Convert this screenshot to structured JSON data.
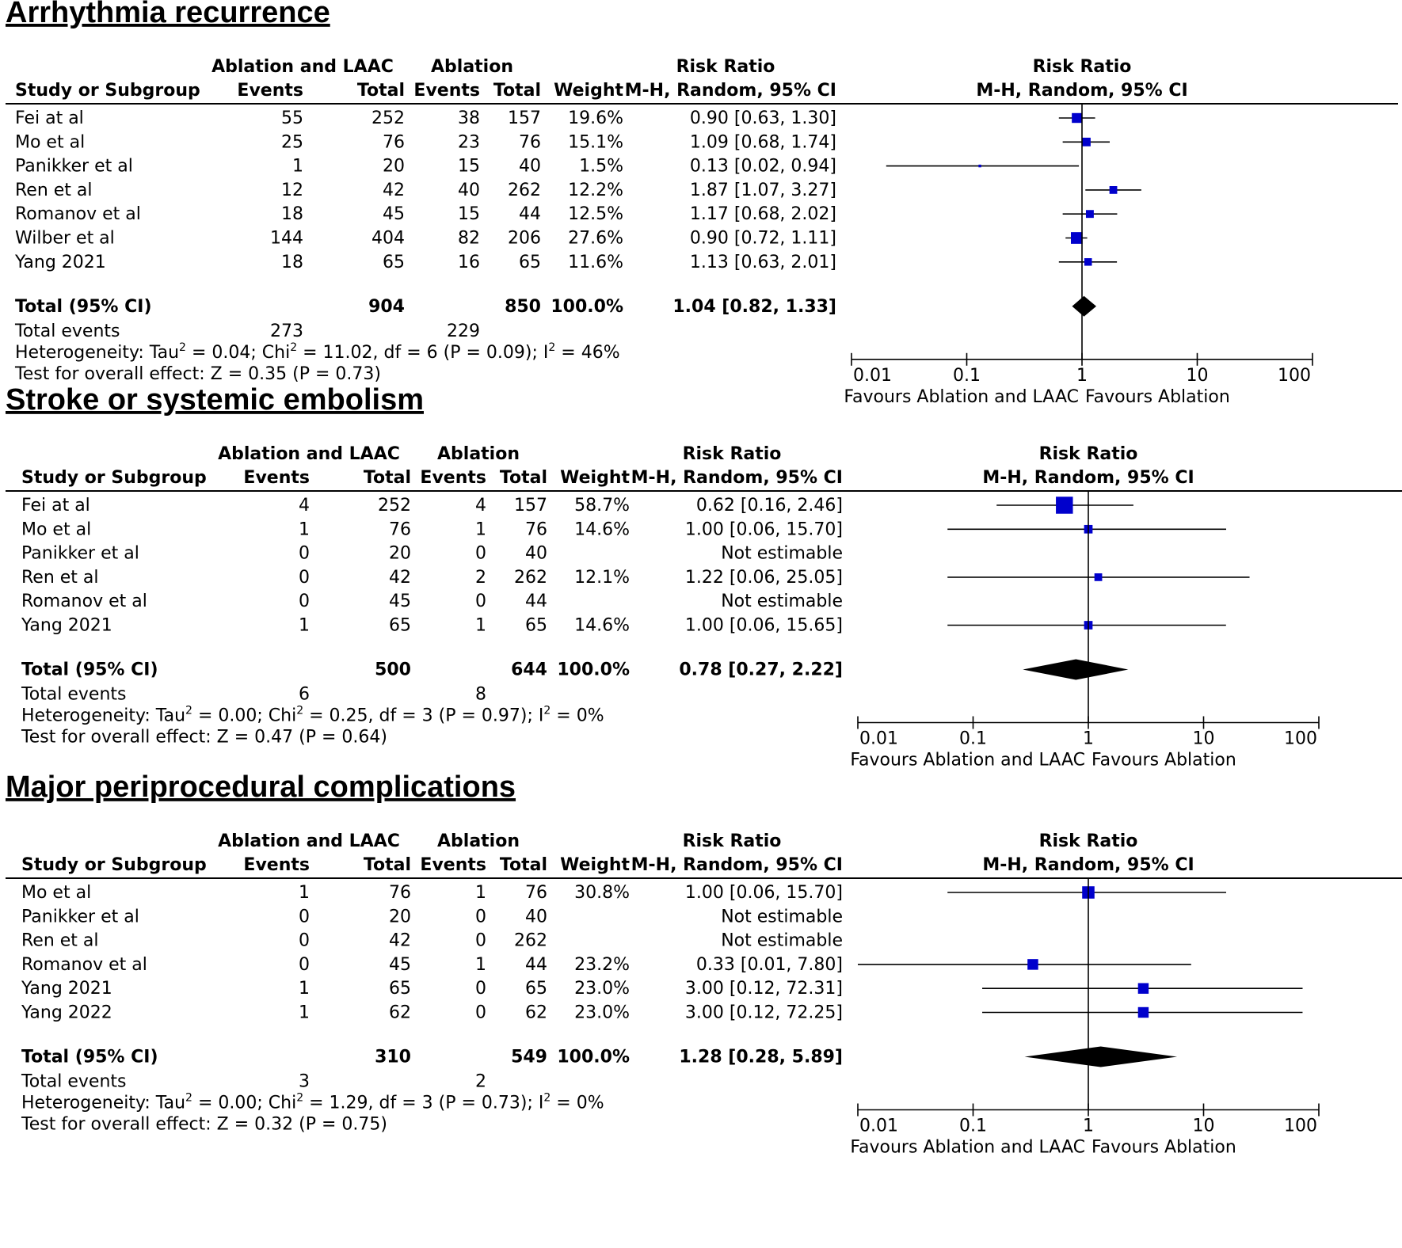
{
  "chart_data": [
    {
      "type": "forest",
      "title": "Arrhythmia recurrence",
      "headers": {
        "group1": "Ablation and LAAC",
        "group2": "Ablation",
        "study": "Study or Subgroup",
        "events": "Events",
        "total": "Total",
        "weight": "Weight",
        "rr1": "Risk Ratio",
        "rr2": "M-H, Random, 95% CI"
      },
      "studies": [
        {
          "name": "Fei at al",
          "e1": "55",
          "n1": "252",
          "e2": "38",
          "n2": "157",
          "weight": "19.6%",
          "ci": "0.90 [0.63, 1.30]",
          "rr": 0.9,
          "lo": 0.63,
          "hi": 1.3,
          "w": 19.6
        },
        {
          "name": "Mo et al",
          "e1": "25",
          "n1": "76",
          "e2": "23",
          "n2": "76",
          "weight": "15.1%",
          "ci": "1.09 [0.68, 1.74]",
          "rr": 1.09,
          "lo": 0.68,
          "hi": 1.74,
          "w": 15.1
        },
        {
          "name": "Panikker et al",
          "e1": "1",
          "n1": "20",
          "e2": "15",
          "n2": "40",
          "weight": "1.5%",
          "ci": "0.13 [0.02, 0.94]",
          "rr": 0.13,
          "lo": 0.02,
          "hi": 0.94,
          "w": 1.5
        },
        {
          "name": "Ren et al",
          "e1": "12",
          "n1": "42",
          "e2": "40",
          "n2": "262",
          "weight": "12.2%",
          "ci": "1.87 [1.07, 3.27]",
          "rr": 1.87,
          "lo": 1.07,
          "hi": 3.27,
          "w": 12.2
        },
        {
          "name": "Romanov et al",
          "e1": "18",
          "n1": "45",
          "e2": "15",
          "n2": "44",
          "weight": "12.5%",
          "ci": "1.17 [0.68, 2.02]",
          "rr": 1.17,
          "lo": 0.68,
          "hi": 2.02,
          "w": 12.5
        },
        {
          "name": "Wilber et al",
          "e1": "144",
          "n1": "404",
          "e2": "82",
          "n2": "206",
          "weight": "27.6%",
          "ci": "0.90 [0.72, 1.11]",
          "rr": 0.9,
          "lo": 0.72,
          "hi": 1.11,
          "w": 27.6
        },
        {
          "name": "Yang 2021",
          "e1": "18",
          "n1": "65",
          "e2": "16",
          "n2": "65",
          "weight": "11.6%",
          "ci": "1.13 [0.63, 2.01]",
          "rr": 1.13,
          "lo": 0.63,
          "hi": 2.01,
          "w": 11.6
        }
      ],
      "total": {
        "label": "Total (95% CI)",
        "n1": "904",
        "n2": "850",
        "weight": "100.0%",
        "ci": "1.04 [0.82, 1.33]",
        "rr": 1.04,
        "lo": 0.82,
        "hi": 1.33
      },
      "total_events": {
        "label": "Total events",
        "e1": "273",
        "e2": "229"
      },
      "heterogeneity": {
        "pre": "Heterogeneity: Tau",
        "tau2": "0.04",
        "chi2": "11.02",
        "df": "6",
        "p": "0.09",
        "i2": "46%"
      },
      "overall": "Test for overall effect: Z = 0.35 (P = 0.73)",
      "axis": {
        "scale": "log",
        "xlim": [
          0.01,
          100
        ],
        "ticks": [
          "0.01",
          "0.1",
          "1",
          "10",
          "100"
        ],
        "favours_left": "Favours Ablation and LAAC",
        "favours_right": "Favours Ablation"
      }
    },
    {
      "type": "forest",
      "title": "Stroke or systemic embolism",
      "headers": {
        "group1": "Ablation and LAAC",
        "group2": "Ablation",
        "study": "Study or Subgroup",
        "events": "Events",
        "total": "Total",
        "weight": "Weight",
        "rr1": "Risk Ratio",
        "rr2": "M-H, Random, 95% CI"
      },
      "studies": [
        {
          "name": "Fei at al",
          "e1": "4",
          "n1": "252",
          "e2": "4",
          "n2": "157",
          "weight": "58.7%",
          "ci": "0.62 [0.16, 2.46]",
          "rr": 0.62,
          "lo": 0.16,
          "hi": 2.46,
          "w": 58.7
        },
        {
          "name": "Mo et al",
          "e1": "1",
          "n1": "76",
          "e2": "1",
          "n2": "76",
          "weight": "14.6%",
          "ci": "1.00 [0.06, 15.70]",
          "rr": 1.0,
          "lo": 0.06,
          "hi": 15.7,
          "w": 14.6
        },
        {
          "name": "Panikker et al",
          "e1": "0",
          "n1": "20",
          "e2": "0",
          "n2": "40",
          "weight": "",
          "ci": "Not estimable"
        },
        {
          "name": "Ren et al",
          "e1": "0",
          "n1": "42",
          "e2": "2",
          "n2": "262",
          "weight": "12.1%",
          "ci": "1.22 [0.06, 25.05]",
          "rr": 1.22,
          "lo": 0.06,
          "hi": 25.05,
          "w": 12.1
        },
        {
          "name": "Romanov et al",
          "e1": "0",
          "n1": "45",
          "e2": "0",
          "n2": "44",
          "weight": "",
          "ci": "Not estimable"
        },
        {
          "name": "Yang 2021",
          "e1": "1",
          "n1": "65",
          "e2": "1",
          "n2": "65",
          "weight": "14.6%",
          "ci": "1.00 [0.06, 15.65]",
          "rr": 1.0,
          "lo": 0.06,
          "hi": 15.65,
          "w": 14.6
        }
      ],
      "total": {
        "label": "Total (95% CI)",
        "n1": "500",
        "n2": "644",
        "weight": "100.0%",
        "ci": "0.78 [0.27, 2.22]",
        "rr": 0.78,
        "lo": 0.27,
        "hi": 2.22
      },
      "total_events": {
        "label": "Total events",
        "e1": "6",
        "e2": "8"
      },
      "heterogeneity": {
        "pre": "Heterogeneity: Tau",
        "tau2": "0.00",
        "chi2": "0.25",
        "df": "3",
        "p": "0.97",
        "i2": "0%"
      },
      "overall": "Test for overall effect: Z = 0.47 (P = 0.64)",
      "axis": {
        "scale": "log",
        "xlim": [
          0.01,
          100
        ],
        "ticks": [
          "0.01",
          "0.1",
          "1",
          "10",
          "100"
        ],
        "favours_left": "Favours Ablation and LAAC",
        "favours_right": "Favours Ablation"
      }
    },
    {
      "type": "forest",
      "title": "Major periprocedural complications",
      "headers": {
        "group1": "Ablation and LAAC",
        "group2": "Ablation",
        "study": "Study or Subgroup",
        "events": "Events",
        "total": "Total",
        "weight": "Weight",
        "rr1": "Risk Ratio",
        "rr2": "M-H, Random, 95% CI"
      },
      "studies": [
        {
          "name": "Mo et al",
          "e1": "1",
          "n1": "76",
          "e2": "1",
          "n2": "76",
          "weight": "30.8%",
          "ci": "1.00 [0.06, 15.70]",
          "rr": 1.0,
          "lo": 0.06,
          "hi": 15.7,
          "w": 30.8
        },
        {
          "name": "Panikker et al",
          "e1": "0",
          "n1": "20",
          "e2": "0",
          "n2": "40",
          "weight": "",
          "ci": "Not estimable"
        },
        {
          "name": "Ren et al",
          "e1": "0",
          "n1": "42",
          "e2": "0",
          "n2": "262",
          "weight": "",
          "ci": "Not estimable"
        },
        {
          "name": "Romanov et al",
          "e1": "0",
          "n1": "45",
          "e2": "1",
          "n2": "44",
          "weight": "23.2%",
          "ci": "0.33 [0.01, 7.80]",
          "rr": 0.33,
          "lo": 0.01,
          "hi": 7.8,
          "w": 23.2
        },
        {
          "name": "Yang 2021",
          "e1": "1",
          "n1": "65",
          "e2": "0",
          "n2": "65",
          "weight": "23.0%",
          "ci": "3.00 [0.12, 72.31]",
          "rr": 3.0,
          "lo": 0.12,
          "hi": 72.31,
          "w": 23.0
        },
        {
          "name": "Yang 2022",
          "e1": "1",
          "n1": "62",
          "e2": "0",
          "n2": "62",
          "weight": "23.0%",
          "ci": "3.00 [0.12, 72.25]",
          "rr": 3.0,
          "lo": 0.12,
          "hi": 72.25,
          "w": 23.0
        }
      ],
      "total": {
        "label": "Total (95% CI)",
        "n1": "310",
        "n2": "549",
        "weight": "100.0%",
        "ci": "1.28 [0.28, 5.89]",
        "rr": 1.28,
        "lo": 0.28,
        "hi": 5.89
      },
      "total_events": {
        "label": "Total events",
        "e1": "3",
        "e2": "2"
      },
      "heterogeneity": {
        "pre": "Heterogeneity: Tau",
        "tau2": "0.00",
        "chi2": "1.29",
        "df": "3",
        "p": "0.73",
        "i2": "0%"
      },
      "overall": "Test for overall effect: Z = 0.32 (P = 0.75)",
      "axis": {
        "scale": "log",
        "xlim": [
          0.01,
          100
        ],
        "ticks": [
          "0.01",
          "0.1",
          "1",
          "10",
          "100"
        ],
        "favours_left": "Favours Ablation and LAAC",
        "favours_right": "Favours Ablation"
      }
    }
  ],
  "colors": {
    "marker": "#0000cc",
    "line": "#000000",
    "text": "#000000"
  }
}
